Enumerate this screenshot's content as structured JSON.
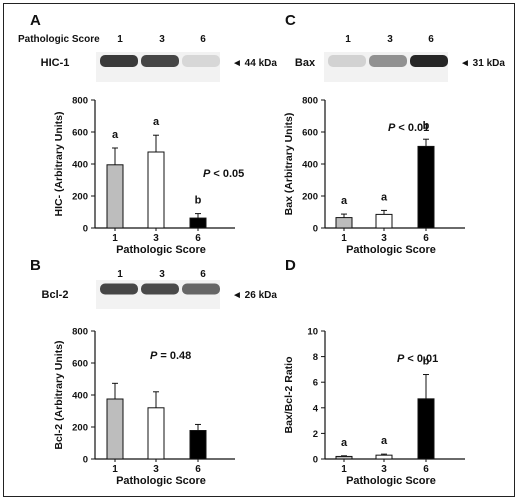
{
  "colors": {
    "score1": "#bdbdbd",
    "score3": "#ffffff",
    "score6": "#000000",
    "band": "#1a1a1a"
  },
  "chart_data": [
    {
      "panel": "A",
      "type": "bar",
      "blot": {
        "header": "Pathologic Score",
        "protein": "HIC-1",
        "kda": "44 kDa",
        "lanes": [
          "1",
          "3",
          "6"
        ],
        "intensity": [
          0.85,
          0.8,
          0.12
        ]
      },
      "categories": [
        "1",
        "3",
        "6"
      ],
      "values": [
        395,
        475,
        62
      ],
      "errors": [
        105,
        105,
        28
      ],
      "letters": [
        "a",
        "a",
        "b"
      ],
      "pvalue": {
        "label": "P",
        "text": "< 0.05"
      },
      "xlabel": "Pathologic Score",
      "ylabel": "HIC- (Arbitrary Units)",
      "ylim": [
        0,
        800
      ],
      "yticks": [
        0,
        200,
        400,
        600,
        800
      ]
    },
    {
      "panel": "B",
      "type": "bar",
      "blot": {
        "header": "",
        "protein": "Bcl-2",
        "kda": "26 kDa",
        "lanes": [
          "1",
          "3",
          "6"
        ],
        "intensity": [
          0.8,
          0.78,
          0.65
        ]
      },
      "categories": [
        "1",
        "3",
        "6"
      ],
      "values": [
        375,
        320,
        178
      ],
      "errors": [
        98,
        100,
        38
      ],
      "letters": [],
      "pvalue": {
        "label": "P",
        "text": "= 0.48"
      },
      "xlabel": "Pathologic Score",
      "ylabel": "Bcl-2 (Arbitrary Units)",
      "ylim": [
        0,
        800
      ],
      "yticks": [
        0,
        200,
        400,
        600,
        800
      ]
    },
    {
      "panel": "C",
      "type": "bar",
      "blot": {
        "header": "",
        "protein": "Bax",
        "kda": "31 kDa",
        "lanes": [
          "1",
          "3",
          "6"
        ],
        "intensity": [
          0.15,
          0.45,
          0.95
        ]
      },
      "categories": [
        "1",
        "3",
        "6"
      ],
      "values": [
        65,
        85,
        510
      ],
      "errors": [
        22,
        25,
        45
      ],
      "letters": [
        "a",
        "a",
        "b"
      ],
      "pvalue": {
        "label": "P",
        "text": "< 0.01"
      },
      "xlabel": "Pathologic Score",
      "ylabel": "Bax (Arbitrary Units)",
      "ylim": [
        0,
        800
      ],
      "yticks": [
        0,
        200,
        400,
        600,
        800
      ]
    },
    {
      "panel": "D",
      "type": "bar",
      "blot": null,
      "categories": [
        "1",
        "3",
        "6"
      ],
      "values": [
        0.2,
        0.3,
        4.7
      ],
      "errors": [
        0.05,
        0.08,
        1.9
      ],
      "letters": [
        "a",
        "a",
        "b"
      ],
      "pvalue": {
        "label": "P",
        "text": "< 0.01"
      },
      "xlabel": "Pathologic Score",
      "ylabel": "Bax/Bcl-2 Ratio",
      "ylim": [
        0,
        10
      ],
      "yticks": [
        0,
        2,
        4,
        6,
        8,
        10
      ]
    }
  ]
}
